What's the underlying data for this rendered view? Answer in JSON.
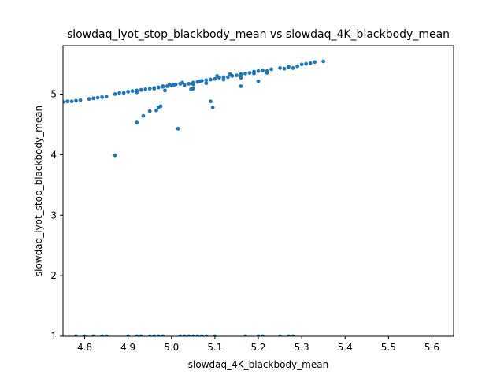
{
  "chart_data": {
    "type": "scatter",
    "title": "slowdaq_lyot_stop_blackbody_mean vs slowdaq_4K_blackbody_mean",
    "xlabel": "slowdaq_4K_blackbody_mean",
    "ylabel": "slowdaq_lyot_stop_blackbody_mean",
    "xlim": [
      4.75,
      5.65
    ],
    "ylim": [
      1.0,
      5.8
    ],
    "xticks": [
      4.8,
      4.9,
      5.0,
      5.1,
      5.2,
      5.3,
      5.4,
      5.5,
      5.6
    ],
    "xtick_labels": [
      "4.8",
      "4.9",
      "5.0",
      "5.1",
      "5.2",
      "5.3",
      "5.4",
      "5.5",
      "5.6"
    ],
    "yticks": [
      1,
      2,
      3,
      4,
      5
    ],
    "ytick_labels": [
      "1",
      "2",
      "3",
      "4",
      "5"
    ],
    "grid": false,
    "marker_color": "#1f77b4",
    "series": [
      {
        "x": [
          4.75,
          4.76,
          4.77,
          4.78,
          4.79,
          4.81,
          4.82,
          4.83,
          4.84,
          4.85,
          4.87,
          4.88,
          4.89,
          4.9,
          4.91,
          4.92,
          4.93,
          4.94,
          4.95,
          4.96,
          4.97,
          4.98,
          4.99,
          5.0,
          5.01,
          5.02,
          5.03,
          5.04,
          5.05,
          5.06,
          5.07,
          5.08,
          5.09,
          5.1,
          5.11,
          5.12,
          5.13,
          5.14,
          5.15,
          5.16,
          5.17,
          5.18,
          5.19,
          5.2,
          5.21,
          5.22,
          5.23,
          5.25,
          5.26,
          5.27,
          5.28,
          5.29,
          5.3,
          5.31,
          5.32,
          5.33,
          5.35,
          4.96,
          4.97,
          4.98,
          5.05,
          5.08,
          5.12,
          5.16,
          5.19,
          5.22,
          5.045,
          5.065,
          5.105,
          5.135,
          5.005,
          4.995,
          4.985,
          5.025,
          4.87,
          4.92,
          4.935,
          4.95,
          4.965,
          4.97,
          4.975,
          5.015,
          5.09,
          5.095,
          5.2,
          5.16,
          5.05,
          4.92,
          4.78,
          4.8,
          4.82,
          4.84,
          4.85,
          4.9,
          4.92,
          4.93,
          4.95,
          4.96,
          4.97,
          4.98,
          5.02,
          5.03,
          5.04,
          5.05,
          5.06,
          5.07,
          5.08,
          5.1,
          5.17,
          5.2,
          5.21,
          5.25,
          5.27,
          5.28
        ],
        "y": [
          4.87,
          4.88,
          4.88,
          4.89,
          4.9,
          4.92,
          4.93,
          4.94,
          4.95,
          4.96,
          5.0,
          5.02,
          5.02,
          5.04,
          5.05,
          5.06,
          5.07,
          5.08,
          5.09,
          5.1,
          5.11,
          5.12,
          5.13,
          5.14,
          5.16,
          5.17,
          5.15,
          5.17,
          5.19,
          5.2,
          5.22,
          5.23,
          5.24,
          5.25,
          5.27,
          5.28,
          5.28,
          5.3,
          5.31,
          5.33,
          5.34,
          5.35,
          5.37,
          5.38,
          5.39,
          5.38,
          5.41,
          5.43,
          5.42,
          5.45,
          5.43,
          5.46,
          5.49,
          5.5,
          5.51,
          5.53,
          5.54,
          5.09,
          5.11,
          5.13,
          5.16,
          5.18,
          5.24,
          5.27,
          5.34,
          5.35,
          5.08,
          5.21,
          5.3,
          5.33,
          5.15,
          5.16,
          5.06,
          5.19,
          3.99,
          4.53,
          4.64,
          4.72,
          4.73,
          4.78,
          4.8,
          4.43,
          4.88,
          4.78,
          5.21,
          5.13,
          5.09,
          5.03,
          1.0,
          1.0,
          1.0,
          1.0,
          1.0,
          1.0,
          1.0,
          1.0,
          1.0,
          1.0,
          1.0,
          1.0,
          1.0,
          1.0,
          1.0,
          1.0,
          1.0,
          1.0,
          1.0,
          1.0,
          1.0,
          1.0,
          1.0,
          1.0,
          1.0,
          1.0
        ]
      }
    ]
  }
}
